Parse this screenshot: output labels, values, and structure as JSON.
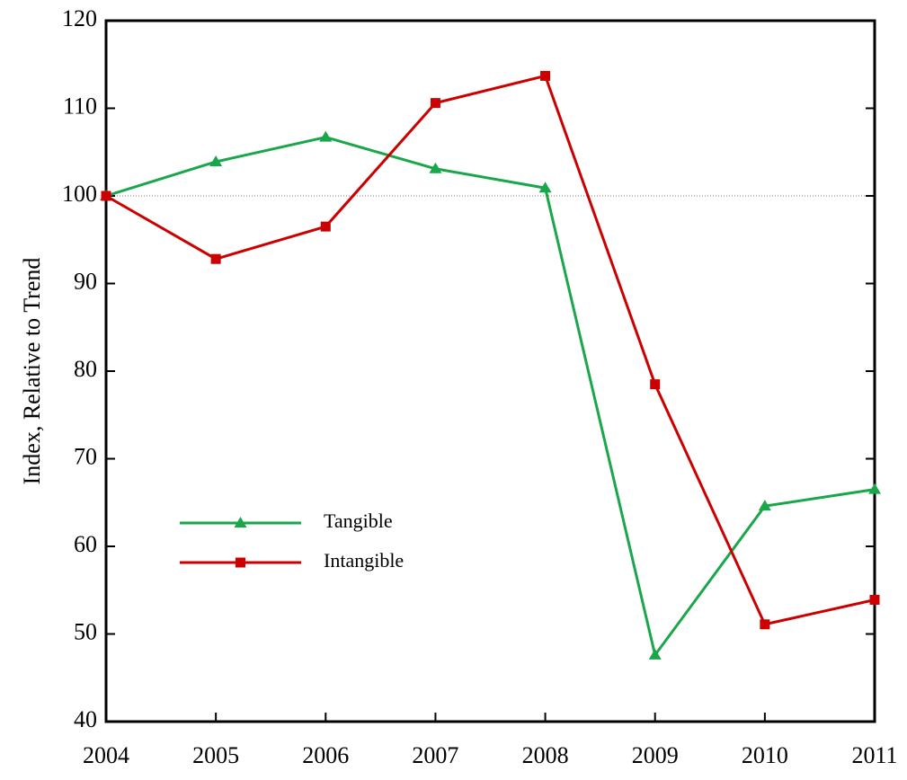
{
  "chart_data": {
    "type": "line",
    "y_label": "Index, Relative to Trend",
    "x": [
      2004,
      2005,
      2006,
      2007,
      2008,
      2009,
      2010,
      2011
    ],
    "series": [
      {
        "name": "Tangible",
        "color": "#1aa64a",
        "marker": "triangle",
        "values": [
          100,
          103.9,
          106.7,
          103.1,
          100.9,
          47.6,
          64.6,
          66.5
        ]
      },
      {
        "name": "Intangible",
        "color": "#cc0000",
        "marker": "square",
        "values": [
          100,
          92.8,
          96.5,
          110.6,
          113.7,
          78.5,
          51.1,
          53.9
        ]
      }
    ],
    "xlim": [
      2004,
      2011
    ],
    "xticks": [
      2004,
      2005,
      2006,
      2007,
      2008,
      2009,
      2010,
      2011
    ],
    "ylim": [
      40,
      120
    ],
    "yticks": [
      40,
      50,
      60,
      70,
      80,
      90,
      100,
      110,
      120
    ],
    "reference_line": 100,
    "legend": "lower-left",
    "grid": false
  }
}
